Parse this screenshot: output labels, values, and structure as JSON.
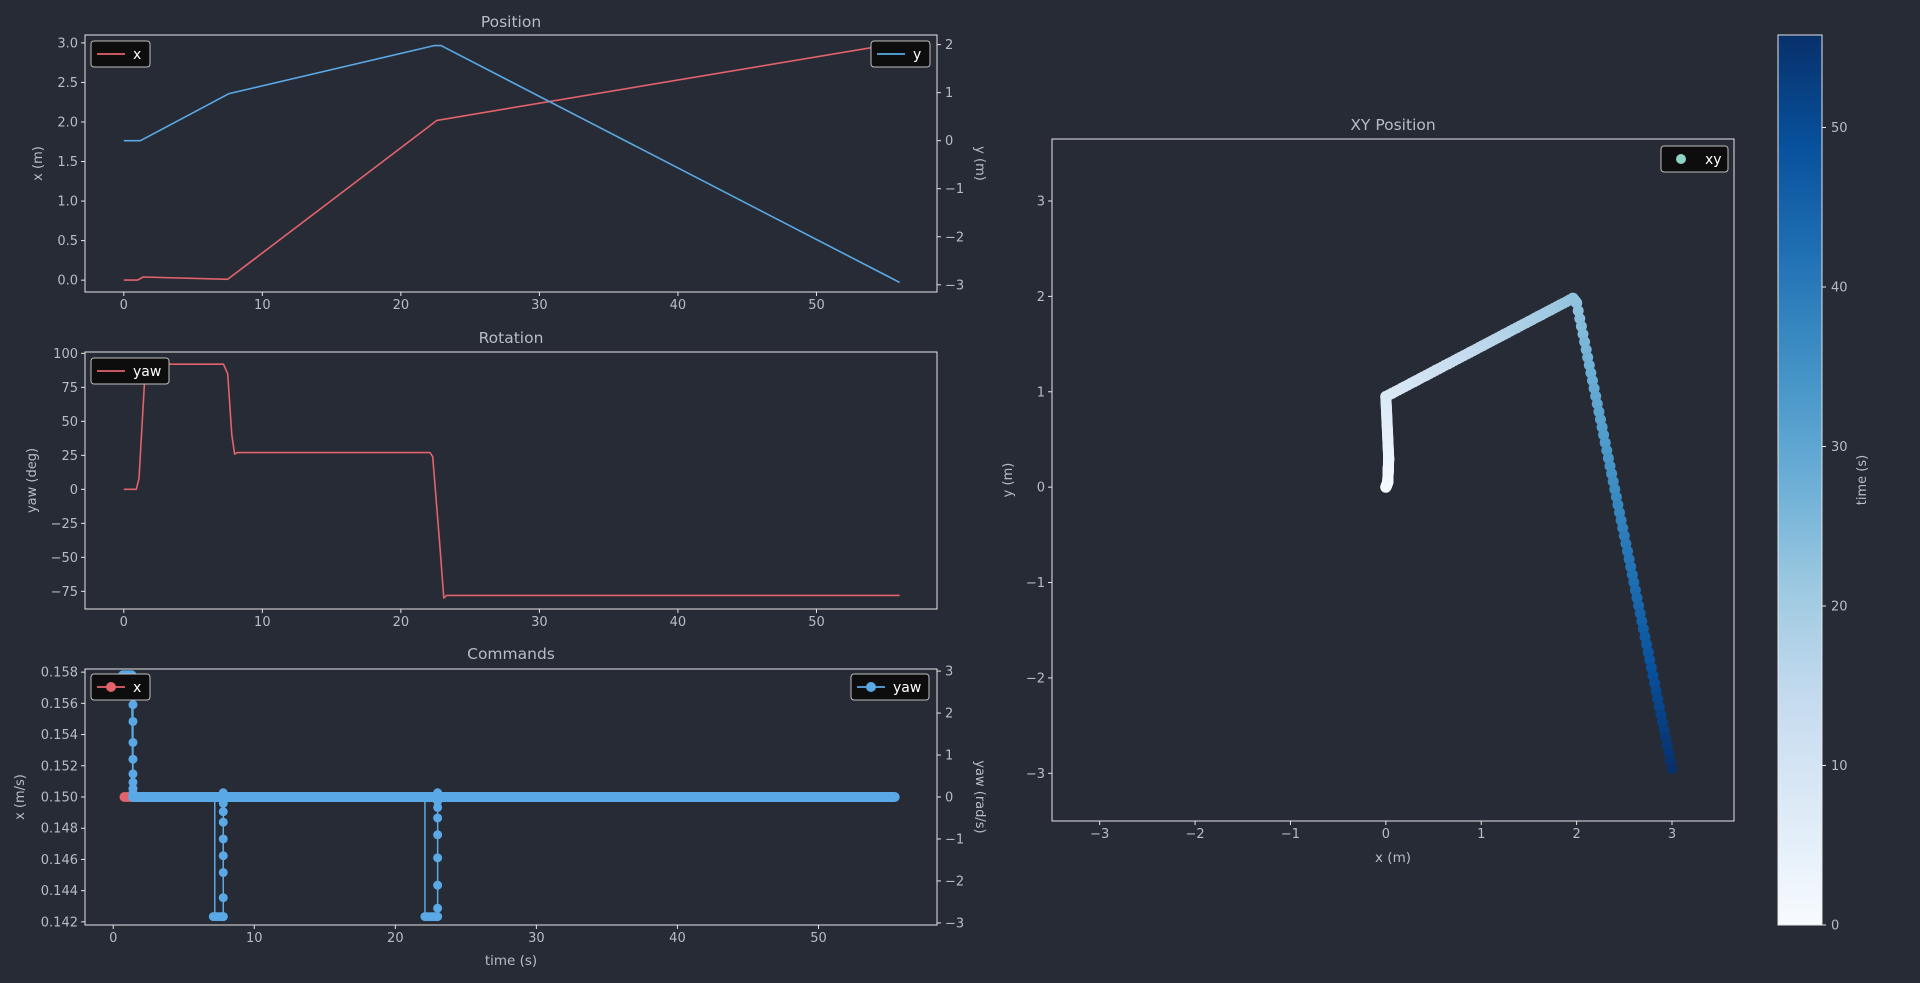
{
  "theme": {
    "background": "#272b35",
    "axis_color": "#e6e6e6",
    "text_color": "#b8bcc4",
    "red": "#e2636b",
    "blue": "#5aa9e6",
    "legend_bg": "#0d0d0d",
    "xy_marker": "#8fd3c7"
  },
  "chart_data": [
    {
      "id": "position",
      "type": "line",
      "title": "Position",
      "xlabel": "",
      "ylabel": "x (m)",
      "ylabel_right": "y (m)",
      "xlim": [
        -2.8,
        58.7
      ],
      "ylim": [
        -0.15,
        3.1
      ],
      "ylim_right": [
        -3.15,
        2.2
      ],
      "xticks": [
        "0",
        "10",
        "20",
        "30",
        "40",
        "50"
      ],
      "yticks": [
        "0.0",
        "0.5",
        "1.0",
        "1.5",
        "2.0",
        "2.5",
        "3.0"
      ],
      "yticks_right": [
        "−3",
        "−2",
        "−1",
        "0",
        "1",
        "2"
      ],
      "series": [
        {
          "name": "x",
          "axis": "left",
          "legend": "top-left",
          "x": [
            0,
            1,
            1.4,
            7.5,
            22.6,
            56
          ],
          "y": [
            0,
            0,
            0.04,
            0.01,
            2.02,
            3.0
          ]
        },
        {
          "name": "y",
          "axis": "right",
          "legend": "top-right",
          "x": [
            0,
            1.2,
            7.6,
            22.4,
            22.9,
            56
          ],
          "y": [
            0,
            0,
            0.98,
            1.98,
            1.98,
            -2.95
          ]
        }
      ]
    },
    {
      "id": "rotation",
      "type": "line",
      "title": "Rotation",
      "xlabel": "",
      "ylabel": "yaw (deg)",
      "xlim": [
        -2.8,
        58.7
      ],
      "ylim": [
        -88,
        101
      ],
      "xticks": [
        "0",
        "10",
        "20",
        "30",
        "40",
        "50"
      ],
      "yticks": [
        "−75",
        "−50",
        "−25",
        "0",
        "25",
        "50",
        "75",
        "100"
      ],
      "series": [
        {
          "name": "yaw",
          "axis": "left",
          "legend": "top-left",
          "x": [
            0,
            0.9,
            1.1,
            1.5,
            2.0,
            7.2,
            7.5,
            7.8,
            8.0,
            8.2,
            22.1,
            22.3,
            22.8,
            23.1,
            23.3,
            56
          ],
          "y": [
            0,
            0,
            8,
            80,
            92,
            92,
            85,
            40,
            26,
            27,
            27,
            24,
            -40,
            -80,
            -78,
            -78
          ]
        }
      ]
    },
    {
      "id": "commands",
      "type": "line",
      "title": "Commands",
      "xlabel": "time (s)",
      "ylabel": "x (m/s)",
      "ylabel_right": "yaw (rad/s)",
      "xlim": [
        -2.0,
        58.4
      ],
      "ylim": [
        0.1418,
        0.1582
      ],
      "ylim_right": [
        -3.05,
        3.05
      ],
      "xticks": [
        "0",
        "10",
        "20",
        "30",
        "40",
        "50"
      ],
      "yticks": [
        "0.142",
        "0.144",
        "0.146",
        "0.148",
        "0.150",
        "0.152",
        "0.154",
        "0.156",
        "0.158"
      ],
      "yticks_right": [
        "−3",
        "−2",
        "−1",
        "0",
        "1",
        "2",
        "3"
      ],
      "series": [
        {
          "name": "x",
          "axis": "left",
          "legend": "top-left",
          "x": [
            0.8,
            55.4
          ],
          "y": [
            0.15,
            0.15
          ],
          "markers_x": [
            0.8,
            1.0,
            1.2,
            1.4,
            22.0,
            22.3
          ]
        },
        {
          "name": "yaw",
          "axis": "right",
          "legend": "top-right",
          "stems": [
            {
              "x": 1.4,
              "marks": [
                2.2,
                1.8,
                1.3,
                0.9,
                0.55,
                0.35,
                0.2,
                0.1
              ]
            },
            {
              "x": 7.8,
              "marks": [
                -2.85,
                -2.4,
                -1.8,
                -1.4,
                -1.0,
                -0.6,
                -0.35,
                -0.15,
                0.1
              ]
            },
            {
              "x": 23.0,
              "marks": [
                -2.85,
                -2.65,
                -2.1,
                -1.45,
                -0.9,
                -0.5,
                -0.25,
                -0.1,
                0.1
              ]
            }
          ],
          "top_cluster_x": [
            0.7,
            0.9,
            1.1,
            1.3
          ],
          "top_cluster_y": 2.9,
          "low_cluster": [
            {
              "x": [
                7.1,
                7.3,
                7.5,
                7.7,
                7.8
              ],
              "y": -2.85
            },
            {
              "x": 22.1,
              "x2": [
                22.1,
                22.3,
                22.5,
                22.7,
                22.9
              ],
              "y": -2.85
            }
          ],
          "line_x": [
            1.4,
            55.4
          ],
          "line_y": [
            0,
            0
          ]
        }
      ]
    },
    {
      "id": "xy",
      "type": "scatter",
      "title": "XY Position",
      "xlabel": "x (m)",
      "ylabel": "y (m)",
      "xlim": [
        -3.5,
        3.65
      ],
      "ylim": [
        -3.5,
        3.65
      ],
      "xticks": [
        "−3",
        "−2",
        "−1",
        "0",
        "1",
        "2",
        "3"
      ],
      "yticks": [
        "−3",
        "−2",
        "−1",
        "0",
        "1",
        "2",
        "3"
      ],
      "legend": "xy",
      "path": {
        "x": [
          0,
          0.02,
          0.03,
          0.0,
          1.96,
          2.0,
          3.0
        ],
        "y": [
          0,
          0.05,
          0.3,
          0.95,
          1.98,
          1.93,
          -2.95
        ],
        "t": [
          0,
          0.8,
          2.5,
          7.6,
          22.4,
          22.9,
          56
        ]
      },
      "colorbar": {
        "label": "time (s)",
        "min": 0,
        "max": 56,
        "ticks": [
          "0",
          "10",
          "20",
          "30",
          "40",
          "50"
        ]
      }
    }
  ]
}
